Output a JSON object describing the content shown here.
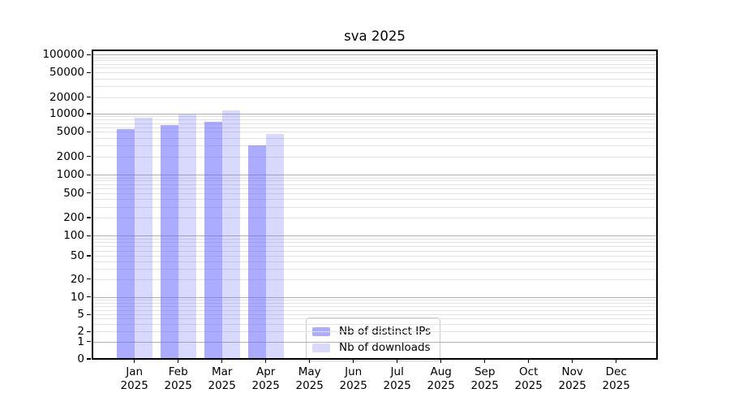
{
  "window": {
    "background": "#ffffff"
  },
  "chart_data": {
    "type": "bar",
    "title": "sva 2025",
    "yscale": "symlog",
    "ylim": [
      0,
      112000
    ],
    "grid": "horizontal major+minor, log decades",
    "legend_position": "bottom-center-inside",
    "year": "2025",
    "months": [
      "Jan",
      "Feb",
      "Mar",
      "Apr",
      "May",
      "Jun",
      "Jul",
      "Aug",
      "Sep",
      "Oct",
      "Nov",
      "Dec"
    ],
    "y_ticks": [
      100000,
      50000,
      20000,
      10000,
      5000,
      2000,
      1000,
      500,
      200,
      100,
      50,
      20,
      10,
      5,
      2,
      1,
      0
    ],
    "series": [
      {
        "name": "Nb of distinct IPs",
        "color": "#6666ff",
        "alpha": 0.55,
        "values": [
          5600,
          6500,
          7300,
          3000,
          null,
          null,
          null,
          null,
          null,
          null,
          null,
          null
        ]
      },
      {
        "name": "Nb of downloads",
        "color": "#6666ff",
        "alpha": 0.25,
        "values": [
          8600,
          9700,
          11300,
          4600,
          null,
          null,
          null,
          null,
          null,
          null,
          null,
          null
        ]
      }
    ],
    "colors": {
      "grid_major": "#b0b0b0",
      "grid_minor": "#e2e2e2",
      "spine": "#000000",
      "text": "#000000"
    }
  }
}
